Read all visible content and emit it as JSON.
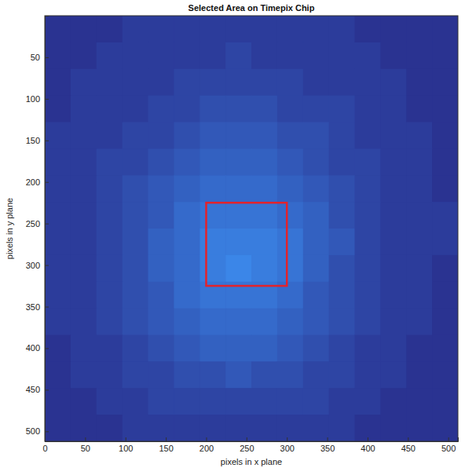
{
  "chart_data": {
    "type": "heatmap",
    "title": "Selected Area on Timepix Chip",
    "x_label": "pixels in x plane",
    "y_label": "pixels in y plane",
    "xlim": [
      0,
      512
    ],
    "ylim": [
      0,
      512
    ],
    "xticks": [
      0,
      50,
      100,
      150,
      200,
      250,
      300,
      350,
      400,
      450,
      500
    ],
    "yticks": [
      50,
      100,
      150,
      200,
      250,
      300,
      350,
      400,
      450,
      500
    ],
    "xbins": [
      0,
      32,
      64,
      96,
      128,
      160,
      192,
      224,
      256,
      288,
      320,
      352,
      384,
      416,
      448,
      480,
      512
    ],
    "ybins": [
      0,
      32,
      64,
      96,
      128,
      160,
      192,
      224,
      256,
      288,
      320,
      352,
      384,
      416,
      448,
      480,
      512
    ],
    "cells": [
      [
        0,
        0,
        0,
        1,
        1,
        1,
        1,
        1,
        1,
        1,
        1,
        1,
        0,
        0,
        0,
        0
      ],
      [
        0,
        0,
        1,
        1,
        1,
        1,
        1,
        2,
        1,
        1,
        1,
        1,
        1,
        0,
        0,
        0
      ],
      [
        0,
        1,
        1,
        1,
        1,
        2,
        2,
        2,
        2,
        2,
        1,
        1,
        1,
        1,
        0,
        0
      ],
      [
        0,
        1,
        1,
        1,
        2,
        2,
        3,
        3,
        3,
        2,
        2,
        2,
        1,
        1,
        0,
        0
      ],
      [
        1,
        1,
        1,
        2,
        2,
        3,
        4,
        4,
        4,
        3,
        3,
        2,
        1,
        1,
        1,
        0
      ],
      [
        1,
        1,
        2,
        2,
        3,
        4,
        5,
        5,
        5,
        4,
        3,
        2,
        2,
        1,
        1,
        0
      ],
      [
        1,
        1,
        2,
        3,
        4,
        5,
        6,
        6,
        6,
        5,
        4,
        3,
        2,
        1,
        1,
        0
      ],
      [
        1,
        1,
        2,
        3,
        4,
        6,
        7,
        7,
        7,
        6,
        5,
        3,
        2,
        1,
        1,
        1
      ],
      [
        1,
        1,
        2,
        3,
        5,
        6,
        8,
        8,
        8,
        7,
        5,
        4,
        2,
        1,
        1,
        1
      ],
      [
        1,
        1,
        2,
        3,
        5,
        6,
        8,
        9,
        8,
        7,
        5,
        3,
        2,
        1,
        1,
        0
      ],
      [
        1,
        1,
        2,
        3,
        4,
        6,
        7,
        7,
        7,
        6,
        4,
        3,
        2,
        1,
        1,
        0
      ],
      [
        1,
        1,
        2,
        3,
        4,
        5,
        6,
        6,
        6,
        5,
        4,
        3,
        2,
        1,
        1,
        0
      ],
      [
        0,
        1,
        1,
        2,
        3,
        4,
        5,
        5,
        5,
        4,
        3,
        2,
        1,
        1,
        0,
        0
      ],
      [
        0,
        1,
        1,
        2,
        2,
        3,
        3,
        4,
        3,
        3,
        2,
        2,
        1,
        1,
        0,
        0
      ],
      [
        0,
        0,
        1,
        1,
        2,
        2,
        2,
        2,
        2,
        2,
        2,
        1,
        1,
        0,
        0,
        0
      ],
      [
        0,
        0,
        0,
        1,
        1,
        1,
        1,
        1,
        1,
        1,
        1,
        1,
        0,
        0,
        0,
        0
      ]
    ],
    "rectangle": {
      "x": [
        200,
        300
      ],
      "y": [
        225,
        325
      ],
      "color": "#e3222b"
    },
    "grid": false
  }
}
